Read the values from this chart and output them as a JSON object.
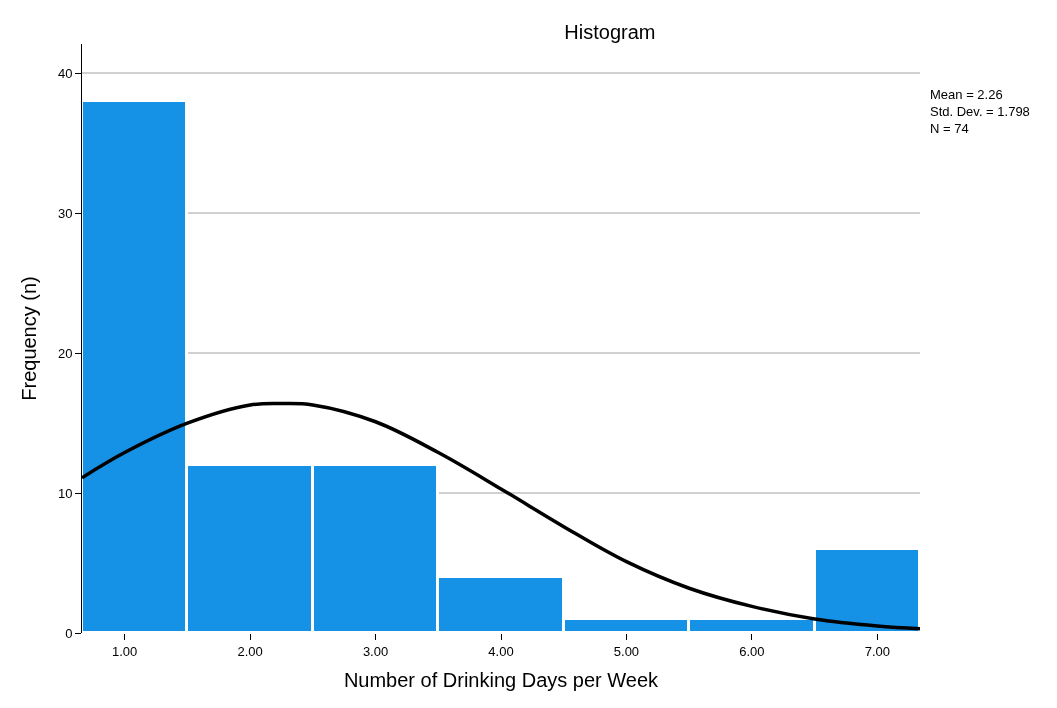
{
  "chart_data": {
    "type": "histogram",
    "title": "Histogram",
    "xlabel": "Number of Drinking Days per Week",
    "ylabel": "Frequency (n)",
    "bins": [
      0.66,
      1.5,
      2.5,
      3.5,
      4.5,
      5.5,
      6.5,
      7.34
    ],
    "values": [
      38,
      12,
      12,
      4,
      1,
      1,
      6
    ],
    "color": "#1591e6",
    "series": [
      {
        "type": "line",
        "color": "#000000",
        "x": [
          0.66,
          1.0,
          1.5,
          2.0,
          2.26,
          2.5,
          3.0,
          3.5,
          4.0,
          4.5,
          5.0,
          5.5,
          6.0,
          6.5,
          7.0,
          7.34
        ],
        "values": [
          11.1,
          12.9,
          15.0,
          16.3,
          16.4,
          16.3,
          15.1,
          12.9,
          10.3,
          7.6,
          5.1,
          3.2,
          1.9,
          1.0,
          0.5,
          0.3
        ]
      }
    ],
    "xlim": [
      0.66,
      7.34
    ],
    "ylim": [
      0,
      42.1
    ],
    "xticks": [
      {
        "value": 1,
        "label": "1.00"
      },
      {
        "value": 2,
        "label": "2.00"
      },
      {
        "value": 3,
        "label": "3.00"
      },
      {
        "value": 4,
        "label": "4.00"
      },
      {
        "value": 5,
        "label": "5.00"
      },
      {
        "value": 6,
        "label": "6.00"
      },
      {
        "value": 7,
        "label": "7.00"
      }
    ],
    "yticks": [
      0,
      10,
      20,
      30,
      40
    ],
    "grid": "y",
    "line_style": "solid",
    "annotations": [
      "Mean = 2.26",
      "Std. Dev. = 1.798",
      "N = 74"
    ]
  }
}
